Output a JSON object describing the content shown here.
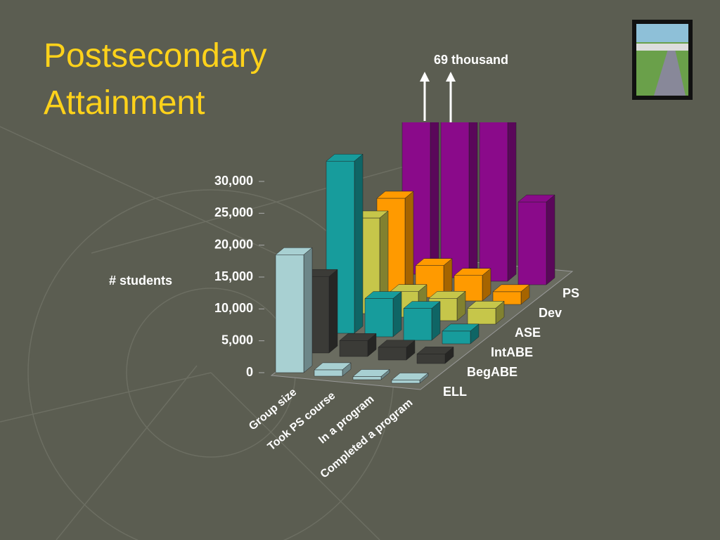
{
  "chart_data": {
    "type": "bar3d",
    "title": "Postsecondary Attainment",
    "y_label": "# students",
    "annotation": "69 thousand",
    "categories": [
      "Group size",
      "Took PS course",
      "In a program",
      "Completed a program"
    ],
    "series": [
      {
        "name": "ELL",
        "color": "#a8d0d2",
        "values": [
          18500,
          1000,
          500,
          500
        ]
      },
      {
        "name": "BegABE",
        "color": "#3b3b37",
        "values": [
          12000,
          2500,
          2000,
          1500
        ]
      },
      {
        "name": "IntABE",
        "color": "#179c9c",
        "values": [
          27000,
          6000,
          5000,
          2000
        ]
      },
      {
        "name": "ASE",
        "color": "#c6c64a",
        "values": [
          15000,
          4000,
          3500,
          2500
        ]
      },
      {
        "name": "Dev",
        "color": "#ff9a00",
        "values": [
          15000,
          5000,
          4000,
          2000
        ]
      },
      {
        "name": "PS",
        "color": "#8a0a8a",
        "values": [
          69000,
          69000,
          31000,
          13000
        ]
      }
    ],
    "ylim": [
      0,
      30000
    ],
    "yticks": [
      0,
      {
        "value": 5000,
        "label": "5,000"
      },
      {
        "value": 10000,
        "label": "10,000"
      },
      {
        "value": 15000,
        "label": "15,000"
      },
      {
        "value": 20000,
        "label": "20,000"
      },
      {
        "value": 25000,
        "label": "25,000"
      },
      {
        "value": 30000,
        "label": "30,000"
      }
    ]
  }
}
